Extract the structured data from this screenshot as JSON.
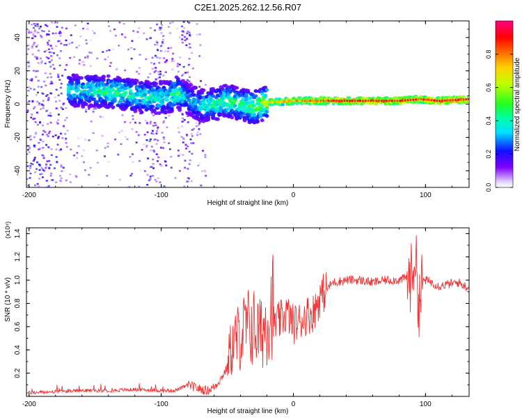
{
  "title": "C2E1.2025.262.12.56.R07",
  "chart_data": [
    {
      "type": "heatmap",
      "title": "C2E1.2025.262.12.56.R07",
      "xlabel": "Height of straight line (km)",
      "ylabel": "Frequency (Hz)",
      "xlim": [
        -202,
        133
      ],
      "ylim": [
        -50,
        50
      ],
      "xticks": [
        -200,
        -100,
        0,
        100
      ],
      "xtick_labels": [
        "-200",
        "-100",
        "0",
        "100"
      ],
      "yticks": [
        -40,
        -20,
        0,
        20,
        40
      ],
      "ytick_labels": [
        "-40",
        "-20",
        "0",
        "20",
        "40"
      ],
      "colorbar": {
        "label": "Normalized spectral amplitude",
        "range": [
          0,
          1
        ],
        "ticks": [
          0.0,
          0.2,
          0.4,
          0.6,
          0.8
        ],
        "tick_labels": [
          "0.0",
          "0.2",
          "0.4",
          "0.6",
          "0.8"
        ],
        "colors": [
          "#ffffff",
          "#7f00ff",
          "#0000ff",
          "#00ffff",
          "#00ff00",
          "#ffff00",
          "#ff8000",
          "#ff0000",
          "#ff0080"
        ]
      },
      "ridge_centerline": {
        "x": [
          -165,
          -150,
          -135,
          -120,
          -105,
          -95,
          -88,
          -80,
          -70,
          -60,
          -50,
          -40,
          -30,
          -20,
          0,
          20,
          40,
          60,
          80,
          95,
          110,
          133
        ],
        "y": [
          8,
          8,
          7,
          5,
          4,
          4,
          7,
          3,
          -1,
          0,
          2,
          0,
          -2,
          1,
          2,
          2,
          2,
          2,
          2,
          3,
          2,
          3
        ],
        "amplitude": [
          0.4,
          0.45,
          0.5,
          0.45,
          0.45,
          0.4,
          0.5,
          0.35,
          0.4,
          0.45,
          0.5,
          0.5,
          0.55,
          0.65,
          0.7,
          0.8,
          0.85,
          0.85,
          0.85,
          0.8,
          0.85,
          0.85
        ]
      }
    },
    {
      "type": "line",
      "xlabel": "Height of straight line (km)",
      "ylabel": "SNR (10 * v/v)",
      "y_multiplier": "(x10⁴)",
      "xlim": [
        -202,
        133
      ],
      "ylim": [
        0,
        1.45
      ],
      "xticks": [
        -200,
        -100,
        0,
        100
      ],
      "xtick_labels": [
        "-200",
        "-100",
        "0",
        "100"
      ],
      "yticks": [
        0.2,
        0.4,
        0.6,
        0.8,
        1.0,
        1.2,
        1.4
      ],
      "ytick_labels": [
        "0.2",
        "0.4",
        "0.6",
        "0.8",
        "1.0",
        "1.2",
        "1.4"
      ],
      "series": [
        {
          "name": "SNR",
          "color": "#ee3333",
          "x": [
            -202,
            -180,
            -160,
            -140,
            -120,
            -100,
            -90,
            -85,
            -80,
            -75,
            -70,
            -65,
            -60,
            -55,
            -50,
            -45,
            -40,
            -35,
            -30,
            -25,
            -20,
            -15,
            -10,
            -5,
            0,
            5,
            10,
            15,
            20,
            25,
            30,
            40,
            50,
            60,
            70,
            80,
            85,
            88,
            90,
            92,
            95,
            98,
            100,
            105,
            110,
            115,
            120,
            125,
            133
          ],
          "y": [
            0.03,
            0.04,
            0.05,
            0.05,
            0.06,
            0.05,
            0.05,
            0.07,
            0.1,
            0.08,
            0.06,
            0.05,
            0.08,
            0.15,
            0.25,
            0.35,
            0.4,
            0.45,
            0.45,
            0.4,
            0.5,
            0.62,
            0.65,
            0.72,
            0.62,
            0.65,
            0.7,
            0.72,
            0.85,
            0.92,
            0.98,
            1.0,
            1.0,
            0.98,
            1.0,
            1.0,
            1.02,
            1.0,
            1.05,
            1.25,
            0.8,
            1.0,
            1.0,
            0.98,
            0.95,
            0.96,
            0.97,
            0.98,
            0.93
          ]
        }
      ]
    }
  ]
}
